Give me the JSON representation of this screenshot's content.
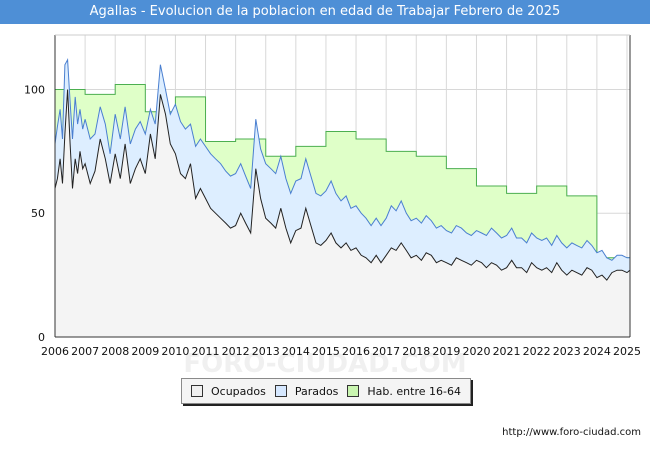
{
  "title": "Agallas - Evolucion de la poblacion en edad de Trabajar Febrero de 2025",
  "source": "http://www.foro-ciudad.com",
  "watermark": "FORO-CIUDAD.COM",
  "colors": {
    "title_bg": "#4e8fd6",
    "hab_fill": "#dfffc8",
    "hab_line": "#4caf50",
    "parados_fill": "#ddeeff",
    "parados_line": "#4a7fd0",
    "ocupados_fill": "#f4f4f4",
    "ocupados_line": "#222222",
    "grid": "#d8d8d8"
  },
  "legend": [
    {
      "label": "Ocupados",
      "color": "#f0f0f0"
    },
    {
      "label": "Parados",
      "color": "#d6e8ff"
    },
    {
      "label": "Hab. entre 16-64",
      "color": "#c9f5b0"
    }
  ],
  "chart_data": {
    "type": "area",
    "title": "Agallas - Evolucion de la poblacion en edad de Trabajar Febrero de 2025",
    "xlabel": "",
    "ylabel": "",
    "xlim": [
      2006,
      2025.1
    ],
    "ylim": [
      0,
      122
    ],
    "x_ticks": [
      "2006",
      "2007",
      "2008",
      "2009",
      "2010",
      "2011",
      "2012",
      "2013",
      "2014",
      "2015",
      "2016",
      "2017",
      "2018",
      "2019",
      "2020",
      "2021",
      "2022",
      "2023",
      "2024",
      "2025"
    ],
    "y_ticks": [
      0,
      50,
      100
    ],
    "series": [
      {
        "name": "Hab. entre 16-64",
        "type": "step",
        "x": [
          2006,
          2007,
          2008,
          2009,
          2010,
          2011,
          2012,
          2013,
          2014,
          2015,
          2016,
          2017,
          2018,
          2019,
          2020,
          2021,
          2022,
          2023,
          2024,
          2025.1
        ],
        "values": [
          100,
          98,
          102,
          91,
          97,
          79,
          80,
          73,
          77,
          83,
          80,
          75,
          73,
          68,
          61,
          58,
          61,
          57,
          32,
          30
        ]
      },
      {
        "name": "Parados",
        "x": [
          2006,
          2006.08,
          2006.17,
          2006.25,
          2006.33,
          2006.42,
          2006.5,
          2006.58,
          2006.67,
          2006.75,
          2006.83,
          2006.92,
          2007,
          2007.17,
          2007.33,
          2007.5,
          2007.67,
          2007.83,
          2008,
          2008.17,
          2008.33,
          2008.5,
          2008.67,
          2008.83,
          2009,
          2009.17,
          2009.33,
          2009.5,
          2009.67,
          2009.83,
          2010,
          2010.17,
          2010.33,
          2010.5,
          2010.67,
          2010.83,
          2011,
          2011.17,
          2011.33,
          2011.5,
          2011.67,
          2011.83,
          2012,
          2012.17,
          2012.33,
          2012.5,
          2012.67,
          2012.83,
          2013,
          2013.17,
          2013.33,
          2013.5,
          2013.67,
          2013.83,
          2014,
          2014.17,
          2014.33,
          2014.5,
          2014.67,
          2014.83,
          2015,
          2015.17,
          2015.33,
          2015.5,
          2015.67,
          2015.83,
          2016,
          2016.17,
          2016.33,
          2016.5,
          2016.67,
          2016.83,
          2017,
          2017.17,
          2017.33,
          2017.5,
          2017.67,
          2017.83,
          2018,
          2018.17,
          2018.33,
          2018.5,
          2018.67,
          2018.83,
          2019,
          2019.17,
          2019.33,
          2019.5,
          2019.67,
          2019.83,
          2020,
          2020.17,
          2020.33,
          2020.5,
          2020.67,
          2020.83,
          2021,
          2021.17,
          2021.33,
          2021.5,
          2021.67,
          2021.83,
          2022,
          2022.17,
          2022.33,
          2022.5,
          2022.67,
          2022.83,
          2023,
          2023.17,
          2023.33,
          2023.5,
          2023.67,
          2023.83,
          2024,
          2024.17,
          2024.33,
          2024.5,
          2024.67,
          2024.83,
          2025,
          2025.1
        ],
        "values": [
          78,
          85,
          92,
          80,
          110,
          112,
          95,
          80,
          97,
          86,
          92,
          84,
          88,
          80,
          82,
          93,
          86,
          74,
          90,
          80,
          93,
          78,
          84,
          87,
          82,
          92,
          86,
          110,
          100,
          90,
          94,
          87,
          84,
          86,
          77,
          80,
          77,
          74,
          72,
          70,
          67,
          65,
          66,
          70,
          65,
          60,
          88,
          76,
          70,
          68,
          66,
          73,
          64,
          58,
          63,
          64,
          72,
          65,
          58,
          57,
          59,
          63,
          58,
          55,
          57,
          52,
          53,
          50,
          48,
          45,
          48,
          45,
          48,
          53,
          51,
          55,
          50,
          47,
          48,
          46,
          49,
          47,
          44,
          45,
          43,
          42,
          45,
          44,
          42,
          41,
          43,
          42,
          41,
          44,
          42,
          40,
          41,
          44,
          40,
          40,
          38,
          42,
          40,
          39,
          40,
          37,
          41,
          38,
          36,
          38,
          37,
          36,
          39,
          37,
          34,
          35,
          32,
          31,
          33,
          33,
          32,
          32
        ]
      },
      {
        "name": "Ocupados",
        "x": [
          2006,
          2006.08,
          2006.17,
          2006.25,
          2006.33,
          2006.42,
          2006.5,
          2006.58,
          2006.67,
          2006.75,
          2006.83,
          2006.92,
          2007,
          2007.17,
          2007.33,
          2007.5,
          2007.67,
          2007.83,
          2008,
          2008.17,
          2008.33,
          2008.5,
          2008.67,
          2008.83,
          2009,
          2009.17,
          2009.33,
          2009.5,
          2009.67,
          2009.83,
          2010,
          2010.17,
          2010.33,
          2010.5,
          2010.67,
          2010.83,
          2011,
          2011.17,
          2011.33,
          2011.5,
          2011.67,
          2011.83,
          2012,
          2012.17,
          2012.33,
          2012.5,
          2012.67,
          2012.83,
          2013,
          2013.17,
          2013.33,
          2013.5,
          2013.67,
          2013.83,
          2014,
          2014.17,
          2014.33,
          2014.5,
          2014.67,
          2014.83,
          2015,
          2015.17,
          2015.33,
          2015.5,
          2015.67,
          2015.83,
          2016,
          2016.17,
          2016.33,
          2016.5,
          2016.67,
          2016.83,
          2017,
          2017.17,
          2017.33,
          2017.5,
          2017.67,
          2017.83,
          2018,
          2018.17,
          2018.33,
          2018.5,
          2018.67,
          2018.83,
          2019,
          2019.17,
          2019.33,
          2019.5,
          2019.67,
          2019.83,
          2020,
          2020.17,
          2020.33,
          2020.5,
          2020.67,
          2020.83,
          2021,
          2021.17,
          2021.33,
          2021.5,
          2021.67,
          2021.83,
          2022,
          2022.17,
          2022.33,
          2022.5,
          2022.67,
          2022.83,
          2023,
          2023.17,
          2023.33,
          2023.5,
          2023.67,
          2023.83,
          2024,
          2024.17,
          2024.33,
          2024.5,
          2024.67,
          2024.83,
          2025,
          2025.1
        ],
        "values": [
          60,
          64,
          72,
          62,
          82,
          100,
          78,
          60,
          72,
          66,
          75,
          68,
          70,
          62,
          67,
          80,
          72,
          62,
          74,
          64,
          78,
          62,
          68,
          72,
          66,
          82,
          72,
          98,
          90,
          78,
          74,
          66,
          64,
          70,
          56,
          60,
          56,
          52,
          50,
          48,
          46,
          44,
          45,
          50,
          46,
          42,
          68,
          56,
          48,
          46,
          44,
          52,
          44,
          38,
          43,
          44,
          52,
          45,
          38,
          37,
          39,
          42,
          38,
          36,
          38,
          35,
          36,
          33,
          32,
          30,
          33,
          30,
          33,
          36,
          35,
          38,
          35,
          32,
          33,
          31,
          34,
          33,
          30,
          31,
          30,
          29,
          32,
          31,
          30,
          29,
          31,
          30,
          28,
          30,
          29,
          27,
          28,
          31,
          28,
          28,
          26,
          30,
          28,
          27,
          28,
          26,
          30,
          27,
          25,
          27,
          26,
          25,
          28,
          27,
          24,
          25,
          23,
          26,
          27,
          27,
          26,
          27
        ]
      }
    ]
  }
}
